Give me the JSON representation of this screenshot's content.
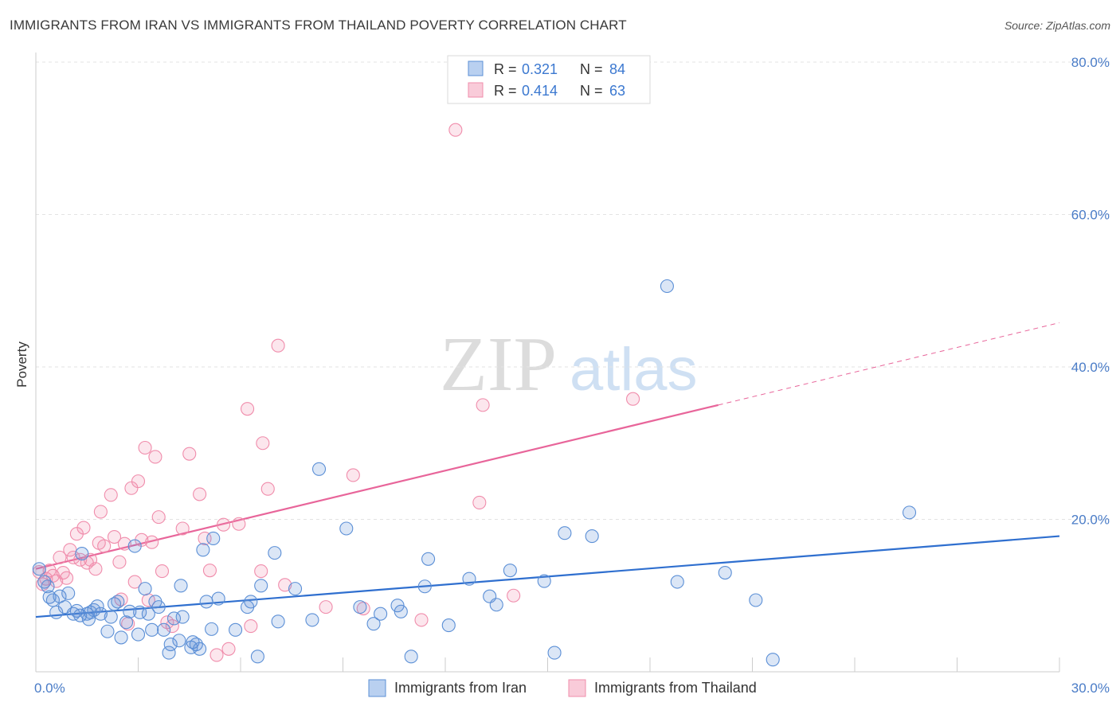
{
  "title": "IMMIGRANTS FROM IRAN VS IMMIGRANTS FROM THAILAND POVERTY CORRELATION CHART",
  "source": "Source: ZipAtlas.com",
  "watermark": {
    "zip": "ZIP",
    "atlas": "atlas"
  },
  "colors": {
    "iran": "#5b8fd6",
    "iran_line": "#2f6fcf",
    "thailand": "#f08cab",
    "thailand_line": "#e8659a",
    "tick": "#4a7cc7"
  },
  "legend": {
    "rows": [
      {
        "r_label": "R =",
        "r_value": "0.321",
        "n_label": "N =",
        "n_value": "84"
      },
      {
        "r_label": "R =",
        "r_value": "0.414",
        "n_label": "N =",
        "n_value": "63"
      }
    ]
  },
  "bottom_legend": [
    "Immigrants from Iran",
    "Immigrants from Thailand"
  ],
  "chart_data": {
    "type": "scatter",
    "title": "IMMIGRANTS FROM IRAN VS IMMIGRANTS FROM THAILAND POVERTY CORRELATION CHART",
    "xlabel": "",
    "ylabel": "Poverty",
    "xlim": [
      0,
      30
    ],
    "ylim": [
      0,
      80
    ],
    "x_tick_labels": [
      "0.0%",
      "30.0%"
    ],
    "y_ticks": [
      20,
      40,
      60,
      80
    ],
    "y_tick_labels": [
      "20.0%",
      "40.0%",
      "60.0%",
      "80.0%"
    ],
    "grid": true,
    "legend_position": "top-center",
    "series": [
      {
        "name": "Immigrants from Iran",
        "r": 0.321,
        "n": 84,
        "trend": {
          "x": [
            0,
            30
          ],
          "y": [
            7.2,
            17.8
          ]
        },
        "points": [
          [
            0.1,
            13.5
          ],
          [
            0.25,
            11.8
          ],
          [
            0.35,
            11.2
          ],
          [
            0.4,
            9.8
          ],
          [
            0.5,
            9.4
          ],
          [
            0.6,
            7.8
          ],
          [
            0.7,
            9.9
          ],
          [
            0.85,
            8.5
          ],
          [
            0.95,
            10.3
          ],
          [
            1.1,
            7.6
          ],
          [
            1.2,
            8.0
          ],
          [
            1.3,
            7.4
          ],
          [
            1.35,
            15.5
          ],
          [
            1.5,
            7.6
          ],
          [
            1.55,
            6.9
          ],
          [
            1.6,
            7.8
          ],
          [
            1.7,
            8.1
          ],
          [
            1.8,
            8.6
          ],
          [
            1.9,
            7.6
          ],
          [
            2.1,
            5.3
          ],
          [
            2.2,
            7.2
          ],
          [
            2.3,
            8.9
          ],
          [
            2.4,
            9.2
          ],
          [
            2.5,
            4.5
          ],
          [
            2.65,
            6.5
          ],
          [
            2.75,
            7.9
          ],
          [
            2.9,
            16.5
          ],
          [
            3.0,
            4.9
          ],
          [
            3.05,
            7.8
          ],
          [
            3.2,
            10.9
          ],
          [
            3.3,
            7.6
          ],
          [
            3.4,
            5.5
          ],
          [
            3.5,
            9.2
          ],
          [
            3.6,
            8.5
          ],
          [
            3.75,
            5.5
          ],
          [
            3.9,
            2.5
          ],
          [
            3.95,
            3.6
          ],
          [
            4.05,
            7.0
          ],
          [
            4.2,
            4.1
          ],
          [
            4.25,
            11.3
          ],
          [
            4.3,
            7.2
          ],
          [
            4.55,
            3.2
          ],
          [
            4.6,
            3.9
          ],
          [
            4.7,
            3.6
          ],
          [
            4.8,
            3.0
          ],
          [
            4.9,
            16.0
          ],
          [
            5.0,
            9.2
          ],
          [
            5.15,
            5.6
          ],
          [
            5.2,
            17.5
          ],
          [
            5.35,
            9.6
          ],
          [
            5.85,
            5.5
          ],
          [
            6.2,
            8.5
          ],
          [
            6.3,
            9.2
          ],
          [
            6.5,
            2.0
          ],
          [
            6.6,
            11.3
          ],
          [
            7.0,
            15.6
          ],
          [
            7.1,
            6.6
          ],
          [
            7.6,
            10.9
          ],
          [
            8.1,
            6.8
          ],
          [
            8.3,
            26.6
          ],
          [
            9.1,
            18.8
          ],
          [
            9.5,
            8.5
          ],
          [
            9.9,
            6.3
          ],
          [
            10.1,
            7.6
          ],
          [
            10.6,
            8.7
          ],
          [
            10.7,
            7.9
          ],
          [
            11.0,
            2.0
          ],
          [
            11.4,
            11.2
          ],
          [
            11.5,
            14.8
          ],
          [
            12.1,
            6.1
          ],
          [
            12.7,
            12.2
          ],
          [
            13.3,
            9.9
          ],
          [
            13.5,
            8.8
          ],
          [
            13.9,
            13.3
          ],
          [
            14.9,
            11.9
          ],
          [
            15.2,
            2.5
          ],
          [
            15.5,
            18.2
          ],
          [
            16.3,
            17.8
          ],
          [
            18.5,
            50.6
          ],
          [
            18.8,
            11.8
          ],
          [
            20.2,
            13.0
          ],
          [
            21.1,
            9.4
          ],
          [
            21.6,
            1.6
          ],
          [
            25.6,
            20.9
          ]
        ]
      },
      {
        "name": "Immigrants from Thailand",
        "r": 0.414,
        "n": 63,
        "trend": {
          "x": [
            0,
            20
          ],
          "y": [
            13.5,
            35.0
          ]
        },
        "trend_dashed": {
          "x": [
            20,
            30
          ],
          "y": [
            35.0,
            45.8
          ]
        },
        "points": [
          [
            0.1,
            13.1
          ],
          [
            0.2,
            11.5
          ],
          [
            0.3,
            12.2
          ],
          [
            0.4,
            13.3
          ],
          [
            0.5,
            12.6
          ],
          [
            0.6,
            11.9
          ],
          [
            0.7,
            15.0
          ],
          [
            0.8,
            13.0
          ],
          [
            0.9,
            12.3
          ],
          [
            1.0,
            16.0
          ],
          [
            1.1,
            15.0
          ],
          [
            1.2,
            18.1
          ],
          [
            1.3,
            14.7
          ],
          [
            1.4,
            18.9
          ],
          [
            1.5,
            14.3
          ],
          [
            1.6,
            14.7
          ],
          [
            1.75,
            13.5
          ],
          [
            1.85,
            16.9
          ],
          [
            1.9,
            21.0
          ],
          [
            2.0,
            16.5
          ],
          [
            2.2,
            23.2
          ],
          [
            2.3,
            17.7
          ],
          [
            2.45,
            14.4
          ],
          [
            2.5,
            9.5
          ],
          [
            2.6,
            16.8
          ],
          [
            2.7,
            6.3
          ],
          [
            2.8,
            24.1
          ],
          [
            2.9,
            11.8
          ],
          [
            3.0,
            25.0
          ],
          [
            3.1,
            17.3
          ],
          [
            3.2,
            29.4
          ],
          [
            3.3,
            9.4
          ],
          [
            3.4,
            17.0
          ],
          [
            3.5,
            28.2
          ],
          [
            3.6,
            20.3
          ],
          [
            3.7,
            13.2
          ],
          [
            3.85,
            6.5
          ],
          [
            4.0,
            6.0
          ],
          [
            4.3,
            18.8
          ],
          [
            4.5,
            28.6
          ],
          [
            4.8,
            23.3
          ],
          [
            4.95,
            17.5
          ],
          [
            5.1,
            13.3
          ],
          [
            5.3,
            2.2
          ],
          [
            5.5,
            19.3
          ],
          [
            5.65,
            3.0
          ],
          [
            5.95,
            19.4
          ],
          [
            6.2,
            34.5
          ],
          [
            6.3,
            6.0
          ],
          [
            6.6,
            13.2
          ],
          [
            6.65,
            30.0
          ],
          [
            6.8,
            24.0
          ],
          [
            7.1,
            42.8
          ],
          [
            7.3,
            11.4
          ],
          [
            8.5,
            8.5
          ],
          [
            9.3,
            25.8
          ],
          [
            9.6,
            8.3
          ],
          [
            11.3,
            6.8
          ],
          [
            12.3,
            71.1
          ],
          [
            13.1,
            35.0
          ],
          [
            13.0,
            22.2
          ],
          [
            14.0,
            10.0
          ],
          [
            17.5,
            35.8
          ]
        ]
      }
    ]
  }
}
